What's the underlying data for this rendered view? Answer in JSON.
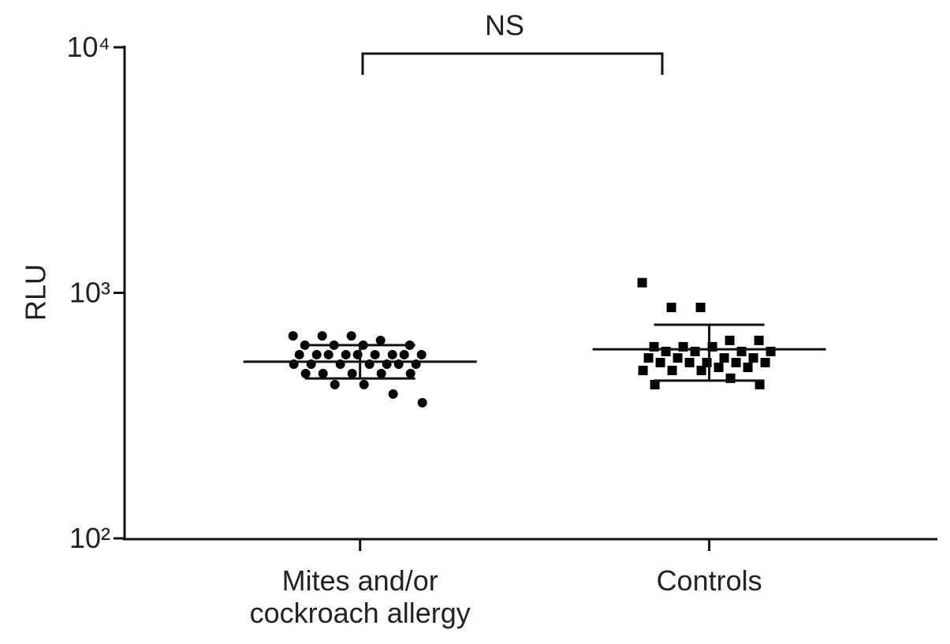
{
  "chart_data": {
    "type": "scatter",
    "y_label": "RLU",
    "annotation": "NS",
    "categories": [
      "Mites and/or cockroach allergy",
      "Controls"
    ],
    "ylim": [
      100,
      10000
    ],
    "yticks": [
      {
        "value": 100,
        "label": "10²"
      },
      {
        "value": 1000,
        "label": "10³"
      },
      {
        "value": 10000,
        "label": "10⁴"
      }
    ],
    "log_scale": true,
    "color": "#000000",
    "series": [
      {
        "marker": "circle",
        "values": [
          668,
          668,
          668,
          640,
          612,
          612,
          612,
          612,
          560,
          560,
          560,
          560,
          560,
          560,
          560,
          560,
          560,
          512,
          512,
          512,
          512,
          512,
          512,
          512,
          469,
          469,
          469,
          469,
          469,
          423,
          423,
          387,
          357
        ],
        "mean": 524,
        "sd_low": 448,
        "sd_high": 612
      },
      {
        "marker": "square",
        "values": [
          1100,
          872,
          872,
          640,
          640,
          603,
          603,
          603,
          577,
          577,
          577,
          577,
          543,
          543,
          543,
          543,
          520,
          520,
          520,
          520,
          520,
          497,
          497,
          483,
          483,
          483,
          449,
          423,
          423
        ],
        "mean": 589,
        "sd_low": 439,
        "sd_high": 741
      }
    ]
  }
}
